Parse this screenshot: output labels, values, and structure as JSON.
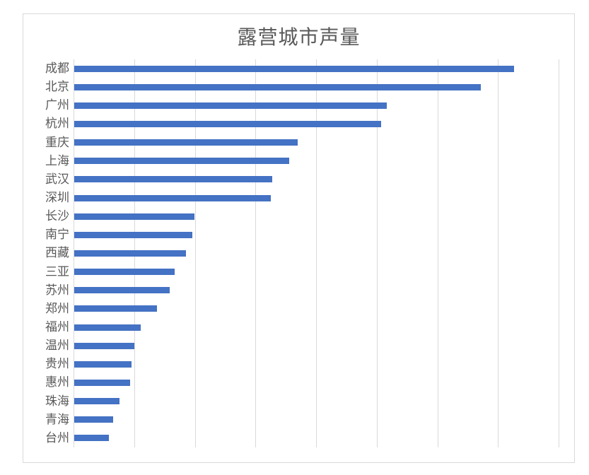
{
  "chart_data": {
    "type": "bar",
    "orientation": "horizontal",
    "title": "露营城市声量",
    "xlabel": "",
    "ylabel": "",
    "categories": [
      "成都",
      "北京",
      "广州",
      "杭州",
      "重庆",
      "上海",
      "武汉",
      "深圳",
      "长沙",
      "南宁",
      "西藏",
      "三亚",
      "苏州",
      "郑州",
      "福州",
      "温州",
      "贵州",
      "惠州",
      "珠海",
      "青海",
      "台州"
    ],
    "values": [
      7.25,
      6.7,
      5.15,
      5.06,
      3.69,
      3.54,
      3.27,
      3.24,
      1.98,
      1.95,
      1.84,
      1.66,
      1.58,
      1.37,
      1.1,
      0.99,
      0.94,
      0.92,
      0.75,
      0.64,
      0.57
    ],
    "value_units": "gridline intervals (value axis tick labels not shown)",
    "xlim": [
      0,
      8
    ],
    "gridlines": 8,
    "grid": true,
    "legend": null,
    "value_axis_labels_visible": false,
    "colors": {
      "bar": "#4472c4",
      "gridline": "#d9d9d9",
      "text": "#595959",
      "border": "#d9d9d9"
    }
  }
}
